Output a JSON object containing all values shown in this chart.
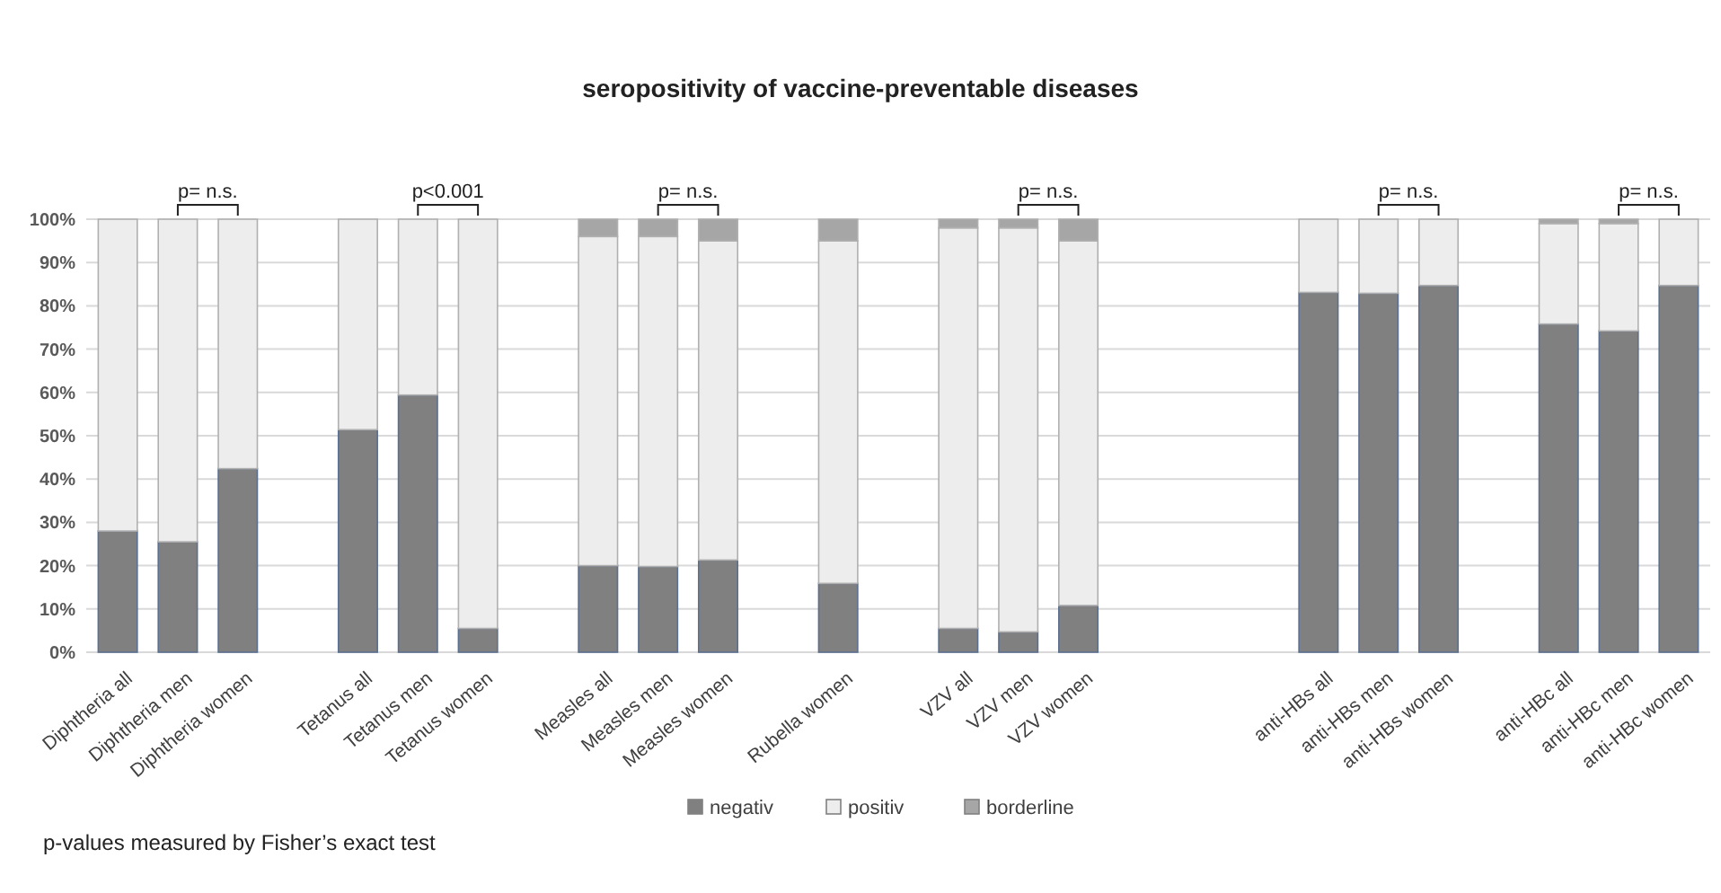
{
  "chart_data": {
    "type": "bar",
    "title": "seropositivity of vaccine-preventable diseases",
    "stacked": true,
    "categories": [
      "Diphtheria all",
      "Diphtheria men",
      "Diphtheria women",
      null,
      "Tetanus all",
      "Tetanus men",
      "Tetanus women",
      null,
      "Measles all",
      "Measles men",
      "Measles women",
      null,
      "Rubella women",
      null,
      "VZV all",
      "VZV men",
      "VZV women",
      null,
      null,
      null,
      "anti-HBs all",
      "anti-HBs men",
      "anti-HBs women",
      null,
      "anti-HBc all",
      "anti-HBc men",
      "anti-HBc women"
    ],
    "series": [
      {
        "name": "negativ",
        "color": "#808080",
        "values": [
          28,
          25.5,
          42.4,
          null,
          51.4,
          59.4,
          5.5,
          null,
          20,
          19.8,
          21.3,
          null,
          15.9,
          null,
          5.5,
          4.7,
          10.8,
          null,
          null,
          null,
          83.1,
          82.9,
          84.7,
          null,
          75.8,
          74.2,
          84.7
        ]
      },
      {
        "name": "positiv",
        "color": "#ededed",
        "values": [
          72,
          74.5,
          57.6,
          null,
          48.6,
          40.6,
          94.5,
          null,
          76,
          76.2,
          73.7,
          null,
          79.1,
          null,
          92.5,
          93.3,
          84.2,
          null,
          null,
          null,
          16.9,
          17.1,
          15.3,
          null,
          23.2,
          24.8,
          15.3
        ]
      },
      {
        "name": "borderline",
        "color": "#a6a6a6",
        "values": [
          0,
          0,
          0,
          null,
          0,
          0,
          0,
          null,
          4,
          4,
          5,
          null,
          5,
          null,
          2,
          2,
          5,
          null,
          null,
          null,
          0,
          0,
          0,
          null,
          1,
          1,
          0
        ]
      }
    ],
    "ylim": [
      0,
      100
    ],
    "yticks": [
      {
        "value": 0,
        "label": "0%"
      },
      {
        "value": 10,
        "label": "10%"
      },
      {
        "value": 20,
        "label": "20%"
      },
      {
        "value": 30,
        "label": "30%"
      },
      {
        "value": 40,
        "label": "40%"
      },
      {
        "value": 50,
        "label": "50%"
      },
      {
        "value": 60,
        "label": "60%"
      },
      {
        "value": 70,
        "label": "70%"
      },
      {
        "value": 80,
        "label": "80%"
      },
      {
        "value": 90,
        "label": "90%"
      },
      {
        "value": 100,
        "label": "100%"
      }
    ],
    "grid": "y",
    "legend": "bottom",
    "annotations": [
      {
        "text": "p= n.s.",
        "x": "Diphtheria men",
        "y": 100
      },
      {
        "text": "p<0.001",
        "x": "Tetanus men",
        "y": 100
      },
      {
        "text": "p= n.s.",
        "x": "Measles men",
        "y": 100
      },
      {
        "text": "p= n.s.",
        "x": "VZV men",
        "y": 100
      },
      {
        "text": "p= n.s.",
        "x": "anti-HBs men",
        "y": 100
      },
      {
        "text": "p= n.s.",
        "x": "anti-HBc men",
        "y": 100
      },
      "p-values measured by Fisher’s exact test"
    ]
  }
}
